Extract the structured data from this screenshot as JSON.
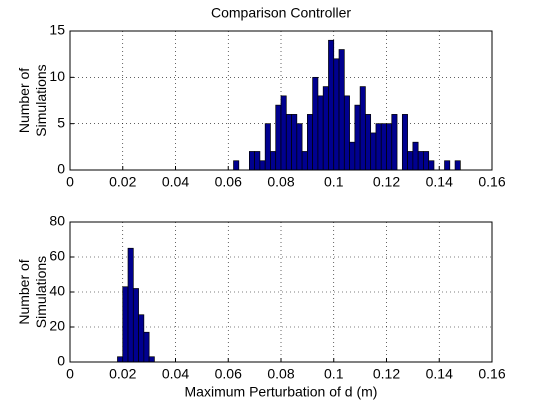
{
  "chart_data": [
    {
      "type": "histogram",
      "title": "Comparison Controller",
      "ylabel": [
        "Number of",
        "Simulations"
      ],
      "bins": [
        0.062,
        0.064,
        0.066,
        0.068,
        0.07,
        0.072,
        0.074,
        0.076,
        0.078,
        0.08,
        0.082,
        0.084,
        0.086,
        0.088,
        0.09,
        0.092,
        0.094,
        0.096,
        0.098,
        0.1,
        0.102,
        0.104,
        0.106,
        0.108,
        0.11,
        0.112,
        0.114,
        0.116,
        0.118,
        0.12,
        0.122,
        0.124,
        0.126,
        0.128,
        0.13,
        0.132,
        0.134,
        0.136,
        0.138,
        0.14,
        0.142,
        0.144,
        0.146,
        0.148
      ],
      "values": [
        1,
        0,
        0,
        2,
        2,
        1,
        5,
        2,
        7,
        8,
        6,
        6,
        5,
        2,
        6,
        10,
        8,
        9,
        14,
        12,
        13,
        8,
        3,
        7,
        9,
        6,
        4,
        5,
        5,
        5,
        6,
        0,
        6,
        2,
        3,
        2,
        2,
        1,
        0,
        0,
        1,
        0,
        1
      ],
      "color": "#00008f",
      "grid": true,
      "xlim": [
        0,
        0.16
      ],
      "xticks": [
        0,
        0.02,
        0.04,
        0.06,
        0.08,
        0.1,
        0.12,
        0.14,
        0.16
      ],
      "ylim": [
        0,
        15
      ],
      "yticks": [
        0,
        5,
        10,
        15
      ]
    },
    {
      "type": "histogram",
      "xlabel": "Maximum Perturbation of d  (m)",
      "ylabel": [
        "Number of",
        "Simulations"
      ],
      "bins": [
        0.018,
        0.02,
        0.022,
        0.024,
        0.026,
        0.028,
        0.03,
        0.032
      ],
      "values": [
        3,
        43,
        65,
        42,
        27,
        17,
        3
      ],
      "color": "#00008f",
      "grid": true,
      "xlim": [
        0,
        0.16
      ],
      "xticks": [
        0,
        0.02,
        0.04,
        0.06,
        0.08,
        0.1,
        0.12,
        0.14,
        0.16
      ],
      "ylim": [
        0,
        80
      ],
      "yticks": [
        0,
        20,
        40,
        60,
        80
      ]
    }
  ]
}
